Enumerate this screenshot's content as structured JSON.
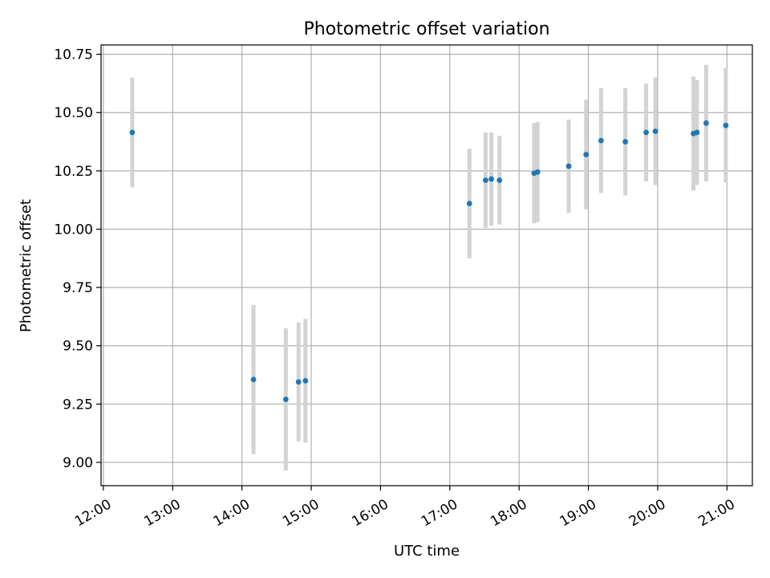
{
  "chart_data": {
    "type": "scatter",
    "title": "Photometric offset variation",
    "xlabel": "UTC time",
    "ylabel": "Photometric offset",
    "x_axis": "time",
    "xlim": [
      "11:58",
      "21:22"
    ],
    "ylim": [
      8.9,
      10.79
    ],
    "grid": true,
    "marker_color": "#1f77b4",
    "errorbar_color": "#d3d3d3",
    "x_ticks": [
      "12:00",
      "13:00",
      "14:00",
      "15:00",
      "16:00",
      "17:00",
      "18:00",
      "19:00",
      "20:00",
      "21:00"
    ],
    "y_ticks": [
      "9.00",
      "9.25",
      "9.50",
      "9.75",
      "10.00",
      "10.25",
      "10.50",
      "10.75"
    ],
    "series": [
      {
        "points": [
          {
            "x": "12:25",
            "y": 10.415,
            "err": 0.235
          },
          {
            "x": "14:10",
            "y": 9.355,
            "err": 0.32
          },
          {
            "x": "14:38",
            "y": 9.27,
            "err": 0.305
          },
          {
            "x": "14:49",
            "y": 9.345,
            "err": 0.255
          },
          {
            "x": "14:55",
            "y": 9.35,
            "err": 0.265
          },
          {
            "x": "17:17",
            "y": 10.11,
            "err": 0.235
          },
          {
            "x": "17:31",
            "y": 10.21,
            "err": 0.205
          },
          {
            "x": "17:36",
            "y": 10.215,
            "err": 0.2
          },
          {
            "x": "17:43",
            "y": 10.21,
            "err": 0.19
          },
          {
            "x": "18:13",
            "y": 10.24,
            "err": 0.215
          },
          {
            "x": "18:16",
            "y": 10.245,
            "err": 0.215
          },
          {
            "x": "18:43",
            "y": 10.27,
            "err": 0.2
          },
          {
            "x": "18:58",
            "y": 10.32,
            "err": 0.235
          },
          {
            "x": "19:11",
            "y": 10.38,
            "err": 0.225
          },
          {
            "x": "19:32",
            "y": 10.375,
            "err": 0.23
          },
          {
            "x": "19:50",
            "y": 10.415,
            "err": 0.21
          },
          {
            "x": "19:58",
            "y": 10.42,
            "err": 0.23
          },
          {
            "x": "20:31",
            "y": 10.41,
            "err": 0.245
          },
          {
            "x": "20:34",
            "y": 10.415,
            "err": 0.225
          },
          {
            "x": "20:42",
            "y": 10.455,
            "err": 0.25
          },
          {
            "x": "20:59",
            "y": 10.445,
            "err": 0.245
          }
        ]
      }
    ]
  }
}
